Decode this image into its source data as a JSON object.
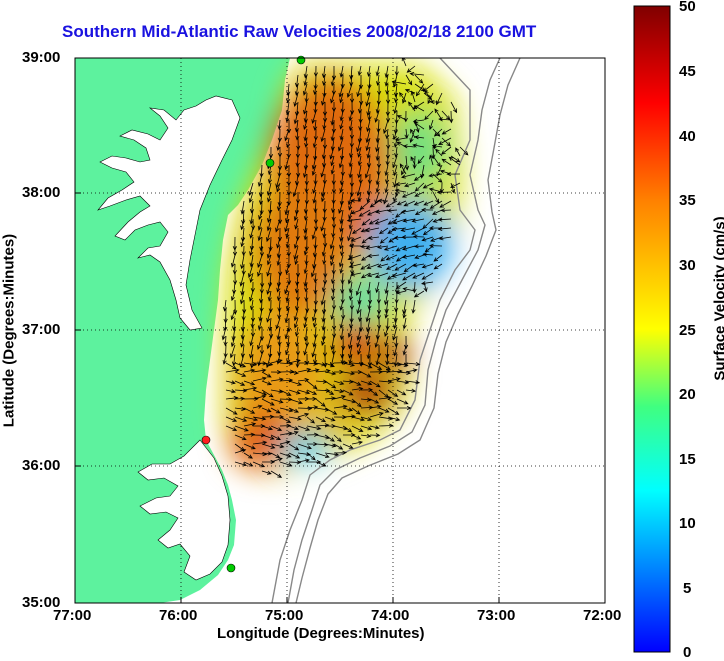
{
  "title": "Southern Mid-Atlantic Raw Velocities 2008/02/18 2100 GMT",
  "axes": {
    "xlabel": "Longitude (Degrees:Minutes)",
    "ylabel": "Latitude (Degrees:Minutes)",
    "x_ticks": [
      "77:00",
      "76:00",
      "75:00",
      "74:00",
      "73:00",
      "72:00"
    ],
    "y_ticks": [
      "39:00",
      "38:00",
      "37:00",
      "36:00",
      "35:00"
    ]
  },
  "colorbar": {
    "label": "Surface Velocity (cm/s)",
    "ticks": [
      "50",
      "45",
      "40",
      "35",
      "30",
      "25",
      "20",
      "15",
      "10",
      "5",
      "0"
    ],
    "min": 0,
    "max": 50,
    "colors": [
      "#0000ff",
      "#0080ff",
      "#00ffff",
      "#40ff80",
      "#ffff00",
      "#ff8000",
      "#ff0000",
      "#800000"
    ]
  },
  "colors": {
    "land": "#5df29e",
    "water": "#ffffff",
    "bathymetry": "#888888",
    "title": "#1a12e0",
    "arrows": "#000000"
  },
  "stations": [
    {
      "color": "#00cc00"
    },
    {
      "color": "#00cc00"
    },
    {
      "color": "#ff0000"
    },
    {
      "color": "#00cc00"
    }
  ]
}
